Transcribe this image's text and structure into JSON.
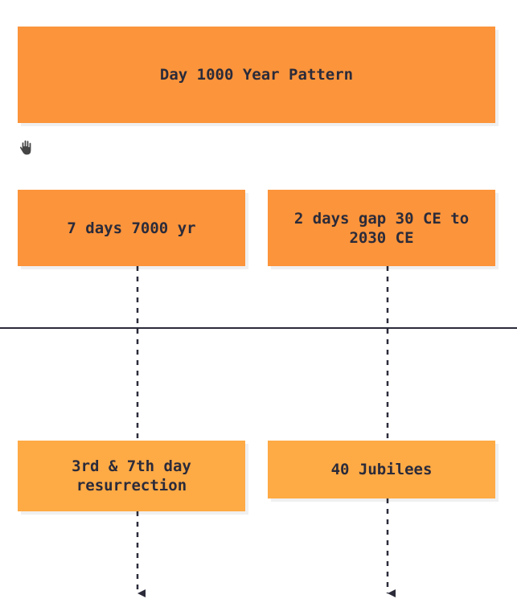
{
  "diagram": {
    "title": "Day 1000 Year Pattern",
    "nodes": [
      {
        "id": "a",
        "label": "7 days 7000 yr"
      },
      {
        "id": "b",
        "label": "2 days gap 30 CE to 2030 CE"
      },
      {
        "id": "c",
        "label": "3rd & 7th day resurrection"
      },
      {
        "id": "d",
        "label": "40 Jubilees"
      }
    ],
    "edges": [
      {
        "from": "a",
        "to": "c",
        "style": "dashed"
      },
      {
        "from": "b",
        "to": "d",
        "style": "dashed"
      },
      {
        "from": "c",
        "to": "below",
        "style": "dashed"
      },
      {
        "from": "d",
        "to": "below",
        "style": "dashed"
      }
    ]
  },
  "colors": {
    "primary_node": "#fb943b",
    "secondary_node": "#feaa45",
    "text": "#2b2b3a",
    "line": "#2b2b3a"
  },
  "icons": {
    "cursor": "hand-grab-icon"
  }
}
